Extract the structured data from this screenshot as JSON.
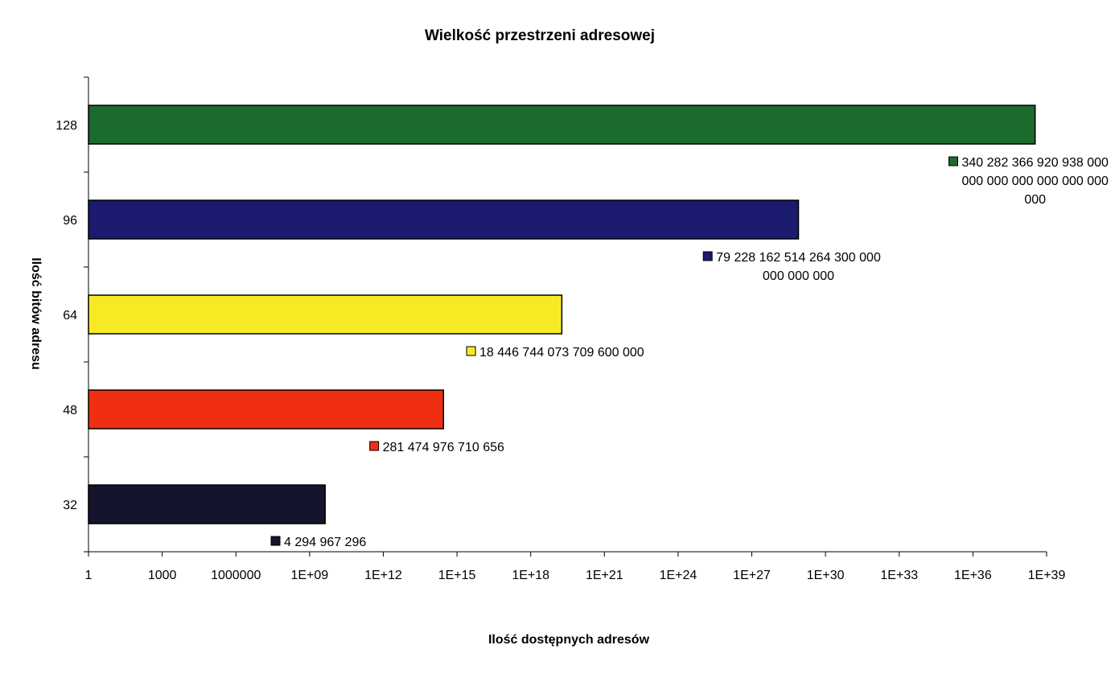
{
  "chart_data": {
    "type": "bar",
    "orientation": "horizontal",
    "title": "Wielkość przestrzeni adresowej",
    "xlabel": "Ilość dostępnych adresów",
    "ylabel": "Ilość bitów adresu",
    "x_scale": "log",
    "xlim": [
      1,
      1e+39
    ],
    "x_tick_labels": [
      "1",
      "1000",
      "1000000",
      "1E+09",
      "1E+12",
      "1E+15",
      "1E+18",
      "1E+21",
      "1E+24",
      "1E+27",
      "1E+30",
      "1E+33",
      "1E+36",
      "1E+39"
    ],
    "categories": [
      "32",
      "48",
      "64",
      "96",
      "128"
    ],
    "values": [
      4294967296,
      281474976710656,
      1.84467440737096e+19,
      7.92281625142643e+28,
      3.40282366920938e+38
    ],
    "bar_colors": [
      "#14142c",
      "#f02e12",
      "#f7ea25",
      "#1a1a6e",
      "#1b6a2e"
    ],
    "data_labels": [
      [
        "4 294 967 296"
      ],
      [
        "281 474 976 710 656"
      ],
      [
        "18 446 744 073 709 600 000"
      ],
      [
        "79 228 162 514 264 300 000",
        "000 000 000"
      ],
      [
        "340 282 366 920 938 000",
        "000 000 000 000 000 000",
        "000"
      ]
    ],
    "grid": false,
    "legend": "none"
  }
}
